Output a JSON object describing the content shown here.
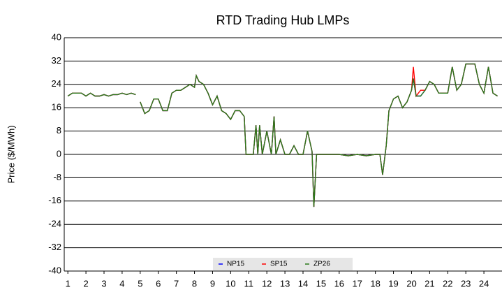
{
  "chart_data": {
    "type": "line",
    "title": "RTD Trading Hub LMPs",
    "y_label": "Price ($/MWh)",
    "x": [
      1,
      1.25,
      1.5,
      1.75,
      2,
      2.25,
      2.5,
      2.75,
      3,
      3.25,
      3.5,
      3.75,
      4,
      4.25,
      4.5,
      4.75,
      4.9,
      5,
      5.25,
      5.5,
      5.75,
      6,
      6.25,
      6.5,
      6.75,
      7,
      7.25,
      7.5,
      7.75,
      8,
      8.1,
      8.25,
      8.5,
      8.75,
      9,
      9.25,
      9.5,
      9.75,
      10,
      10.25,
      10.5,
      10.75,
      10.85,
      11,
      11.25,
      11.4,
      11.5,
      11.6,
      11.75,
      12,
      12.25,
      12.4,
      12.5,
      12.75,
      13,
      13.25,
      13.5,
      13.75,
      14,
      14.25,
      14.5,
      14.6,
      14.75,
      15,
      15.5,
      16,
      16.5,
      17,
      17.5,
      18,
      18.25,
      18.4,
      18.6,
      18.75,
      19,
      19.25,
      19.5,
      19.75,
      20,
      20.1,
      20.25,
      20.5,
      20.75,
      21,
      21.25,
      21.5,
      21.75,
      22,
      22.25,
      22.5,
      22.75,
      23,
      23.25,
      23.5,
      23.75,
      24,
      24.25,
      24.5,
      24.75
    ],
    "series": [
      {
        "name": "NP15",
        "color": "#0000ff",
        "values": [
          20,
          21,
          21,
          21,
          20,
          21,
          20,
          20,
          20.5,
          20,
          20.5,
          20.5,
          21,
          20.5,
          21,
          20.5,
          null,
          18,
          14,
          15,
          19,
          19,
          15,
          15,
          21,
          22,
          22,
          23,
          24,
          23,
          27,
          25,
          24,
          21,
          17,
          20,
          15,
          14,
          12,
          15,
          15,
          13,
          0,
          0,
          0,
          10,
          0,
          10,
          0,
          8,
          0,
          13,
          0,
          5,
          0,
          0,
          3,
          0,
          0,
          8,
          1,
          -18,
          0,
          0,
          0,
          0,
          -0.5,
          0,
          -0.5,
          0,
          0,
          -7,
          3,
          15,
          19,
          20,
          16,
          18,
          22,
          26,
          20,
          20,
          22,
          25,
          24,
          21,
          21,
          21,
          30,
          22,
          24,
          31,
          31,
          31,
          24,
          21,
          30,
          21,
          20
        ]
      },
      {
        "name": "SP15",
        "color": "#ff0000",
        "values": [
          20,
          21,
          21,
          21,
          20,
          21,
          20,
          20,
          20.5,
          20,
          20.5,
          20.5,
          21,
          20.5,
          21,
          20.5,
          null,
          18,
          14,
          15,
          19,
          19,
          15,
          15,
          21,
          22,
          22,
          23,
          24,
          23,
          27,
          25,
          24,
          21,
          17,
          20,
          15,
          14,
          12,
          15,
          15,
          13,
          0,
          0,
          0,
          10,
          0,
          10,
          0,
          8,
          0,
          13,
          0,
          5,
          0,
          0,
          3,
          0,
          0,
          8,
          1,
          -18,
          0,
          0,
          0,
          0,
          -0.5,
          0,
          -0.5,
          0,
          0,
          -7,
          3,
          15,
          19,
          20,
          16,
          18,
          22,
          30,
          20,
          22,
          22,
          25,
          24,
          21,
          21,
          21,
          30,
          22,
          24,
          31,
          31,
          31,
          24,
          21,
          30,
          21,
          20
        ]
      },
      {
        "name": "ZP26",
        "color": "#2a7a1a",
        "values": [
          20,
          21,
          21,
          21,
          20,
          21,
          20,
          20,
          20.5,
          20,
          20.5,
          20.5,
          21,
          20.5,
          21,
          20.5,
          null,
          18,
          14,
          15,
          19,
          19,
          15,
          15,
          21,
          22,
          22,
          23,
          24,
          23,
          27,
          25,
          24,
          21,
          17,
          20,
          15,
          14,
          12,
          15,
          15,
          13,
          0,
          0,
          0,
          10,
          0,
          10,
          0,
          8,
          0,
          13,
          0,
          5,
          0,
          0,
          3,
          0,
          0,
          8,
          1,
          -18,
          0,
          0,
          0,
          0,
          -0.5,
          0,
          -0.5,
          0,
          0,
          -7,
          3,
          15,
          19,
          20,
          16,
          18,
          22,
          26,
          20,
          20,
          22,
          25,
          24,
          21,
          21,
          21,
          30,
          22,
          24,
          31,
          31,
          31,
          24,
          21,
          30,
          21,
          20
        ]
      }
    ],
    "xlim": [
      0.8,
      25
    ],
    "xticks": [
      1,
      2,
      3,
      4,
      5,
      6,
      7,
      8,
      9,
      10,
      11,
      12,
      13,
      14,
      15,
      16,
      17,
      18,
      19,
      20,
      21,
      22,
      23,
      24
    ],
    "ylim": [
      -40,
      40
    ],
    "yticks": [
      -40,
      -32,
      -24,
      -16,
      -8,
      0,
      8,
      16,
      24,
      32,
      40
    ],
    "grid": true
  }
}
